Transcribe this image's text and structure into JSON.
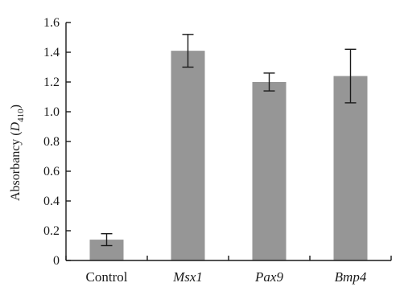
{
  "chart_data": {
    "type": "bar",
    "categories": [
      "Control",
      "Msx1",
      "Pax9",
      "Bmp4"
    ],
    "category_italic": [
      false,
      true,
      true,
      true
    ],
    "values": [
      0.14,
      1.41,
      1.2,
      1.24
    ],
    "error": [
      0.04,
      0.11,
      0.06,
      0.18
    ],
    "ylabel": {
      "text": "Absorbancy (",
      "var": "D",
      "sub": "410",
      "close": ")"
    },
    "ylim": [
      0,
      1.6
    ],
    "yticks": [
      0,
      0.2,
      0.4,
      0.6,
      0.8,
      1.0,
      1.2,
      1.4,
      1.6
    ],
    "ytick_labels": [
      "0",
      "0.2",
      "0.4",
      "0.6",
      "0.8",
      "1.0",
      "1.2",
      "1.4",
      "1.6"
    ],
    "grid": false,
    "colors": {
      "bar": "#969696",
      "axis": "#1a1a1a",
      "error": "#1a1a1a"
    }
  }
}
